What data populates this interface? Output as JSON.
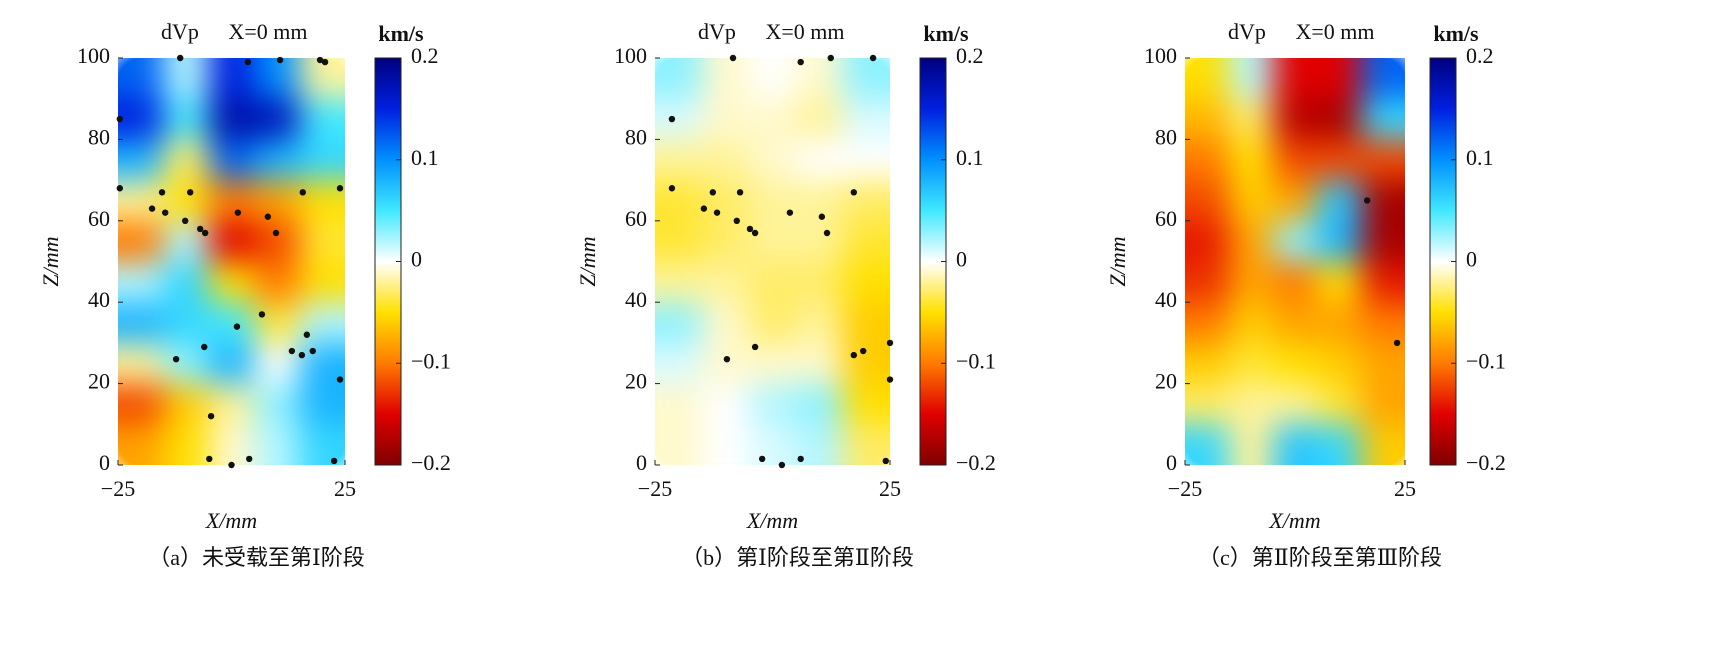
{
  "chart_data": [
    {
      "type": "heatmap",
      "title": "dVp",
      "annotation": "X=0 mm",
      "xlabel": "X/mm",
      "ylabel": "Z/mm",
      "caption": "（a）未受载至第Ⅰ阶段",
      "xlim": [
        -25,
        25
      ],
      "ylim": [
        0,
        100
      ],
      "xticks": [
        {
          "value": -25,
          "label": "−25"
        },
        25
      ],
      "yticks": [
        0,
        20,
        40,
        60,
        80,
        100
      ],
      "x": [
        -20,
        -10,
        0,
        10,
        20
      ],
      "y": [
        95,
        85,
        75,
        65,
        55,
        45,
        35,
        25,
        15,
        5
      ],
      "z": [
        [
          0.12,
          0.02,
          0.15,
          0.1,
          -0.02
        ],
        [
          0.15,
          0.05,
          0.18,
          0.17,
          0.05
        ],
        [
          0.08,
          -0.03,
          0.12,
          0.08,
          0.06
        ],
        [
          -0.02,
          -0.05,
          -0.1,
          -0.08,
          -0.05
        ],
        [
          -0.1,
          0.02,
          -0.15,
          -0.12,
          -0.04
        ],
        [
          0.02,
          0.06,
          -0.05,
          -0.1,
          -0.05
        ],
        [
          0.08,
          0.06,
          0.05,
          -0.04,
          0.02
        ],
        [
          -0.02,
          0.03,
          0.08,
          0.0,
          0.08
        ],
        [
          -0.12,
          -0.06,
          -0.02,
          0.03,
          0.08
        ],
        [
          -0.08,
          -0.05,
          -0.01,
          0.02,
          0.06
        ]
      ],
      "points": {
        "x": [
          -11.3,
          3.6,
          10.7,
          19.5,
          20.6,
          -24.6,
          -24.6,
          -15.3,
          -9.1,
          -17.5,
          -14.6,
          -10.2,
          -6.9,
          -5.8,
          1.4,
          8,
          9.8,
          15.7,
          23.9,
          1.2,
          6.7,
          -6,
          -12.2,
          16.6,
          13.3,
          15.5,
          17.9,
          23.9,
          -4.5,
          -4.9,
          0,
          3.9,
          22.6
        ],
        "y": [
          100,
          99,
          99.5,
          99.5,
          99,
          85,
          68,
          67,
          67,
          63,
          62,
          60,
          58,
          57,
          62,
          61,
          57,
          67,
          68,
          34,
          37,
          29,
          26,
          32,
          28,
          27,
          28,
          21,
          12,
          1.5,
          0,
          1.5,
          1
        ]
      },
      "colorbar": {
        "label": "km/s",
        "lim": [
          -0.2,
          0.2
        ],
        "ticks": [
          {
            "value": -0.2,
            "label": "−0.2"
          },
          {
            "value": -0.1,
            "label": "−0.1"
          },
          0,
          0.1,
          0.2
        ],
        "colormap": [
          "#7f0000",
          "#e00000",
          "#ff7a00",
          "#ffe000",
          "#ffffff",
          "#40e8ff",
          "#0090ff",
          "#0020e0",
          "#00007f"
        ]
      }
    },
    {
      "type": "heatmap",
      "title": "dVp",
      "annotation": "X=0 mm",
      "xlabel": "X/mm",
      "ylabel": "Z/mm",
      "caption": "（b）第Ⅰ阶段至第Ⅱ阶段",
      "xlim": [
        -25,
        25
      ],
      "ylim": [
        0,
        100
      ],
      "xticks": [
        {
          "value": -25,
          "label": "−25"
        },
        25
      ],
      "yticks": [
        0,
        20,
        40,
        60,
        80,
        100
      ],
      "x": [
        -20,
        -10,
        0,
        10,
        20
      ],
      "y": [
        95,
        85,
        75,
        65,
        55,
        45,
        35,
        25,
        15,
        5
      ],
      "z": [
        [
          0.03,
          -0.01,
          0.0,
          -0.01,
          0.03
        ],
        [
          0.01,
          -0.01,
          -0.01,
          -0.02,
          0.01
        ],
        [
          -0.02,
          -0.02,
          -0.01,
          0.0,
          0.0
        ],
        [
          -0.04,
          -0.03,
          -0.02,
          -0.02,
          -0.03
        ],
        [
          -0.04,
          -0.03,
          -0.02,
          -0.02,
          -0.04
        ],
        [
          -0.02,
          -0.02,
          -0.03,
          -0.03,
          -0.05
        ],
        [
          0.03,
          -0.01,
          -0.03,
          -0.02,
          -0.06
        ],
        [
          0.01,
          -0.01,
          -0.01,
          -0.01,
          -0.06
        ],
        [
          -0.01,
          0.0,
          0.02,
          0.03,
          -0.05
        ],
        [
          -0.01,
          0.0,
          0.01,
          0.02,
          -0.03
        ]
      ],
      "points": {
        "x": [
          -8.4,
          6,
          12.4,
          21.4,
          -21.4,
          -21.4,
          -12.7,
          -6.9,
          -14.6,
          -11.8,
          -7.6,
          -4.8,
          -3.7,
          3.7,
          10.5,
          11.6,
          17.3,
          -9.7,
          -3.7,
          17.3,
          19.3,
          25,
          25,
          -2.2,
          2,
          6,
          24.1
        ],
        "y": [
          100,
          99,
          100,
          100,
          85,
          68,
          67,
          67,
          63,
          62,
          60,
          58,
          57,
          62,
          61,
          57,
          67,
          26,
          29,
          27,
          28,
          30,
          21,
          1.5,
          0,
          1.5,
          1
        ]
      },
      "colorbar": {
        "label": "km/s",
        "lim": [
          -0.2,
          0.2
        ],
        "ticks": [
          {
            "value": -0.2,
            "label": "−0.2"
          },
          {
            "value": -0.1,
            "label": "−0.1"
          },
          0,
          0.1,
          0.2
        ],
        "colormap": [
          "#7f0000",
          "#e00000",
          "#ff7a00",
          "#ffe000",
          "#ffffff",
          "#40e8ff",
          "#0090ff",
          "#0020e0",
          "#00007f"
        ]
      }
    },
    {
      "type": "heatmap",
      "title": "dVp",
      "annotation": "X=0 mm",
      "xlabel": "X/mm",
      "ylabel": "Z/mm",
      "caption": "（c）第Ⅱ阶段至第Ⅲ阶段",
      "xlim": [
        -25,
        25
      ],
      "ylim": [
        0,
        100
      ],
      "xticks": [
        {
          "value": -25,
          "label": "−25"
        },
        25
      ],
      "yticks": [
        0,
        20,
        40,
        60,
        80,
        100
      ],
      "x": [
        -20,
        -10,
        0,
        10,
        20
      ],
      "y": [
        95,
        85,
        75,
        65,
        55,
        45,
        35,
        25,
        15,
        5
      ],
      "z": [
        [
          -0.05,
          0.02,
          -0.15,
          -0.15,
          0.12
        ],
        [
          -0.07,
          -0.03,
          -0.17,
          -0.18,
          0.06
        ],
        [
          -0.1,
          -0.05,
          -0.12,
          -0.12,
          -0.12
        ],
        [
          -0.12,
          -0.06,
          -0.08,
          0.07,
          -0.18
        ],
        [
          -0.14,
          -0.08,
          0.03,
          0.08,
          -0.18
        ],
        [
          -0.13,
          -0.08,
          -0.1,
          -0.05,
          -0.14
        ],
        [
          -0.1,
          -0.06,
          -0.08,
          -0.08,
          -0.1
        ],
        [
          -0.06,
          -0.04,
          -0.05,
          -0.06,
          -0.08
        ],
        [
          -0.03,
          -0.02,
          -0.02,
          -0.04,
          -0.08
        ],
        [
          0.06,
          -0.02,
          0.07,
          0.06,
          -0.06
        ]
      ],
      "points": {
        "x": [
          16.4,
          23.2
        ],
        "y": [
          65,
          30
        ]
      },
      "colorbar": {
        "label": "km/s",
        "lim": [
          -0.2,
          0.2
        ],
        "ticks": [
          {
            "value": -0.2,
            "label": "−0.2"
          },
          {
            "value": -0.1,
            "label": "−0.1"
          },
          0,
          0.1,
          0.2
        ],
        "colormap": [
          "#7f0000",
          "#e00000",
          "#ff7a00",
          "#ffe000",
          "#ffffff",
          "#40e8ff",
          "#0090ff",
          "#0020e0",
          "#00007f"
        ]
      }
    }
  ]
}
